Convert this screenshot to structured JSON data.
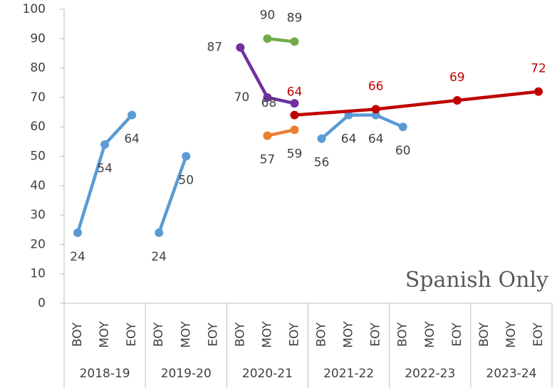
{
  "chart_data": {
    "type": "line",
    "annotation": "Spanish Only",
    "categories": [
      "BOY",
      "MOY",
      "EOY",
      "BOY",
      "MOY",
      "EOY",
      "BOY",
      "MOY",
      "EOY",
      "BOY",
      "MOY",
      "EOY",
      "BOY",
      "MOY",
      "EOY",
      "BOY",
      "MOY",
      "EOY"
    ],
    "groups": [
      "2018-19",
      "2019-20",
      "2020-21",
      "2021-22",
      "2022-23",
      "2023-24"
    ],
    "ylim": [
      0,
      100
    ],
    "yticks": [
      0,
      10,
      20,
      30,
      40,
      50,
      60,
      70,
      80,
      90,
      100
    ],
    "connect_gaps": false,
    "series": [
      {
        "color": "#5b9bd5",
        "label_color": "#404040",
        "values": [
          24,
          54,
          64,
          null,
          null,
          null,
          null,
          null,
          null,
          null,
          null,
          null,
          null,
          null,
          null,
          null,
          null,
          null
        ]
      },
      {
        "color": "#5b9bd5",
        "label_color": "#404040",
        "values": [
          null,
          null,
          null,
          24,
          50,
          null,
          null,
          null,
          null,
          null,
          null,
          null,
          null,
          null,
          null,
          null,
          null,
          null
        ]
      },
      {
        "color": "#5b9bd5",
        "label_color": "#404040",
        "values": [
          null,
          null,
          null,
          null,
          null,
          null,
          null,
          null,
          null,
          56,
          64,
          64,
          60,
          null,
          null,
          null,
          null,
          null
        ]
      },
      {
        "color": "#7030a0",
        "label_color": "#404040",
        "values": [
          null,
          null,
          null,
          null,
          null,
          null,
          87,
          70,
          68,
          null,
          null,
          null,
          null,
          null,
          null,
          null,
          null,
          null
        ]
      },
      {
        "color": "#70ad47",
        "label_color": "#404040",
        "values": [
          null,
          null,
          null,
          null,
          null,
          null,
          null,
          90,
          89,
          null,
          null,
          null,
          null,
          null,
          null,
          null,
          null,
          null
        ]
      },
      {
        "color": "#ed7d31",
        "label_color": "#404040",
        "values": [
          null,
          null,
          null,
          null,
          null,
          null,
          null,
          57,
          59,
          null,
          null,
          null,
          null,
          null,
          null,
          null,
          null,
          null
        ]
      },
      {
        "color": "#c00000",
        "label_color": "#c00000",
        "connect_gaps": true,
        "values": [
          null,
          null,
          null,
          null,
          null,
          null,
          null,
          null,
          64,
          null,
          null,
          66,
          null,
          null,
          69,
          null,
          null,
          72
        ]
      }
    ]
  }
}
